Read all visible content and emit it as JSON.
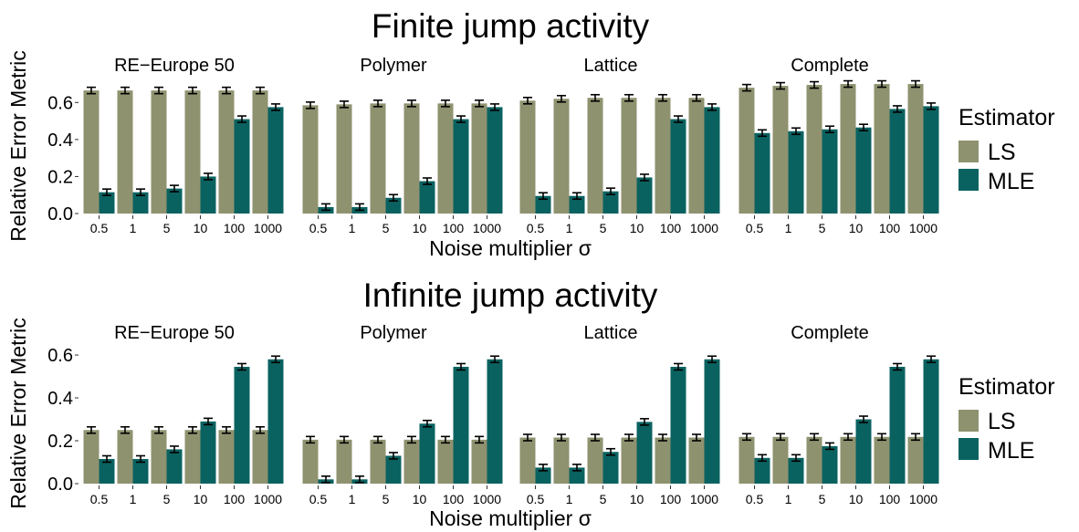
{
  "chart_data": [
    {
      "type": "bar",
      "title": "Finite jump activity",
      "xlabel": "Noise multiplier σ",
      "ylabel": "Relative Error Metric",
      "ylim": [
        0,
        0.72
      ],
      "yticks": [
        "0.0",
        "0.2",
        "0.4",
        "0.6"
      ],
      "categories": [
        "0.5",
        "1",
        "5",
        "10",
        "100",
        "1000"
      ],
      "legend": {
        "title": "Estimator",
        "position": "right"
      },
      "facets": [
        {
          "name": "RE−Europe 50",
          "series": [
            {
              "name": "LS",
              "values": [
                0.665,
                0.665,
                0.665,
                0.665,
                0.665,
                0.665
              ]
            },
            {
              "name": "MLE",
              "values": [
                0.115,
                0.115,
                0.135,
                0.2,
                0.51,
                0.575
              ]
            }
          ]
        },
        {
          "name": "Polymer",
          "series": [
            {
              "name": "LS",
              "values": [
                0.585,
                0.59,
                0.595,
                0.595,
                0.595,
                0.595
              ]
            },
            {
              "name": "MLE",
              "values": [
                0.035,
                0.035,
                0.085,
                0.175,
                0.51,
                0.575
              ]
            }
          ]
        },
        {
          "name": "Lattice",
          "series": [
            {
              "name": "LS",
              "values": [
                0.61,
                0.62,
                0.625,
                0.625,
                0.625,
                0.625
              ]
            },
            {
              "name": "MLE",
              "values": [
                0.095,
                0.095,
                0.12,
                0.195,
                0.51,
                0.575
              ]
            }
          ]
        },
        {
          "name": "Complete",
          "series": [
            {
              "name": "LS",
              "values": [
                0.68,
                0.69,
                0.695,
                0.7,
                0.7,
                0.7
              ]
            },
            {
              "name": "MLE",
              "values": [
                0.435,
                0.445,
                0.455,
                0.465,
                0.565,
                0.58
              ]
            }
          ]
        }
      ]
    },
    {
      "type": "bar",
      "title": "Infinite jump activity",
      "xlabel": "Noise multiplier σ",
      "ylabel": "Relative Error Metric",
      "ylim": [
        0,
        0.63
      ],
      "yticks": [
        "0.0",
        "0.2",
        "0.4",
        "0.6"
      ],
      "categories": [
        "0.5",
        "1",
        "5",
        "10",
        "100",
        "1000"
      ],
      "legend": {
        "title": "Estimator",
        "position": "right"
      },
      "facets": [
        {
          "name": "RE−Europe 50",
          "series": [
            {
              "name": "LS",
              "values": [
                0.25,
                0.25,
                0.25,
                0.25,
                0.25,
                0.25
              ]
            },
            {
              "name": "MLE",
              "values": [
                0.115,
                0.115,
                0.16,
                0.29,
                0.545,
                0.58
              ]
            }
          ]
        },
        {
          "name": "Polymer",
          "series": [
            {
              "name": "LS",
              "values": [
                0.205,
                0.205,
                0.205,
                0.205,
                0.205,
                0.205
              ]
            },
            {
              "name": "MLE",
              "values": [
                0.02,
                0.02,
                0.13,
                0.28,
                0.545,
                0.58
              ]
            }
          ]
        },
        {
          "name": "Lattice",
          "series": [
            {
              "name": "LS",
              "values": [
                0.215,
                0.215,
                0.215,
                0.215,
                0.215,
                0.215
              ]
            },
            {
              "name": "MLE",
              "values": [
                0.075,
                0.075,
                0.148,
                0.288,
                0.545,
                0.58
              ]
            }
          ]
        },
        {
          "name": "Complete",
          "series": [
            {
              "name": "LS",
              "values": [
                0.218,
                0.218,
                0.218,
                0.218,
                0.218,
                0.218
              ]
            },
            {
              "name": "MLE",
              "values": [
                0.12,
                0.12,
                0.175,
                0.3,
                0.545,
                0.58
              ]
            }
          ]
        }
      ]
    }
  ],
  "colors": {
    "LS": "#8f926f",
    "MLE": "#0a6260",
    "errorbar": "#000000"
  }
}
